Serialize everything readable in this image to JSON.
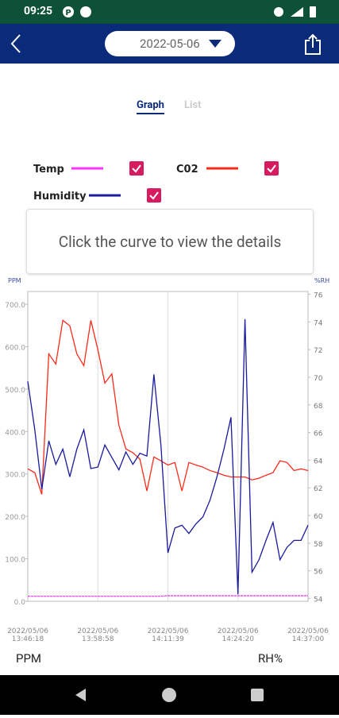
{
  "status_bar": {
    "time": "09:25"
  },
  "header": {
    "date": "2022-05-06"
  },
  "tabs": [
    "Graph",
    "List"
  ],
  "hint": "Click the curve to view the details",
  "footer": {
    "left": "PPM",
    "right": "RH%"
  },
  "chart_data": {
    "type": "line",
    "left_axis_label": "PPM",
    "right_axis_label": "%RH",
    "x_labels": [
      {
        "date": "2022/05/06",
        "time": "13:46:18"
      },
      {
        "date": "2022/05/06",
        "time": "13:58:58"
      },
      {
        "date": "2022/05/06",
        "time": "14:11:39"
      },
      {
        "date": "2022/05/06",
        "time": "14:24:20"
      },
      {
        "date": "2022/05/06",
        "time": "14:37:00"
      }
    ],
    "ylim": [
      0,
      730
    ],
    "yticks": [
      {
        "value": 0,
        "label": "0.0"
      },
      {
        "value": 100,
        "label": "100.0"
      },
      {
        "value": 200,
        "label": "200.0"
      },
      {
        "value": 300,
        "label": "300.0"
      },
      {
        "value": 400,
        "label": "400.0"
      },
      {
        "value": 500,
        "label": "500.0"
      },
      {
        "value": 600,
        "label": "600.0"
      },
      {
        "value": 700,
        "label": "700.0"
      }
    ],
    "y2lim": [
      53.8,
      76.2
    ],
    "y2ticks": [
      54,
      56,
      58,
      60,
      62,
      64,
      66,
      68,
      70,
      72,
      74,
      76
    ],
    "series": [
      {
        "name": "Temp",
        "color": "#ff33ff",
        "values": [
          12,
          12,
          12,
          12,
          12,
          12,
          12,
          12,
          12,
          12,
          12,
          12,
          12,
          12,
          12,
          12,
          12,
          12,
          12,
          12,
          13,
          13,
          13,
          13,
          13,
          13,
          13,
          13,
          13,
          13,
          13,
          13,
          13,
          13,
          13,
          13,
          13,
          13,
          13,
          13,
          13
        ]
      },
      {
        "name": "C02",
        "color": "#ff2a1a",
        "values": [
          312,
          303,
          252,
          583,
          559,
          662,
          649,
          583,
          555,
          662,
          593,
          514,
          536,
          415,
          359,
          350,
          335,
          260,
          340,
          331,
          321,
          327,
          260,
          327,
          321,
          316,
          308,
          303,
          297,
          293,
          293,
          293,
          286,
          290,
          297,
          303,
          331,
          327,
          308,
          312,
          308
        ]
      },
      {
        "name": "Humidity",
        "color": "#1a1a9e",
        "axis": "y2",
        "values": [
          69.7,
          66.2,
          61.9,
          65.4,
          63.7,
          64.8,
          62.8,
          64.8,
          66.2,
          63.4,
          63.5,
          65.1,
          64.2,
          63.3,
          64.6,
          63.7,
          64.5,
          64.3,
          70.2,
          65.1,
          57.3,
          59.1,
          59.3,
          58.7,
          59.4,
          59.9,
          61.1,
          62.8,
          64.8,
          67.1,
          54.3,
          74.2,
          55.9,
          56.8,
          58.2,
          59.5,
          56.8,
          57.7,
          58.2,
          58.2,
          59.3
        ]
      }
    ]
  }
}
